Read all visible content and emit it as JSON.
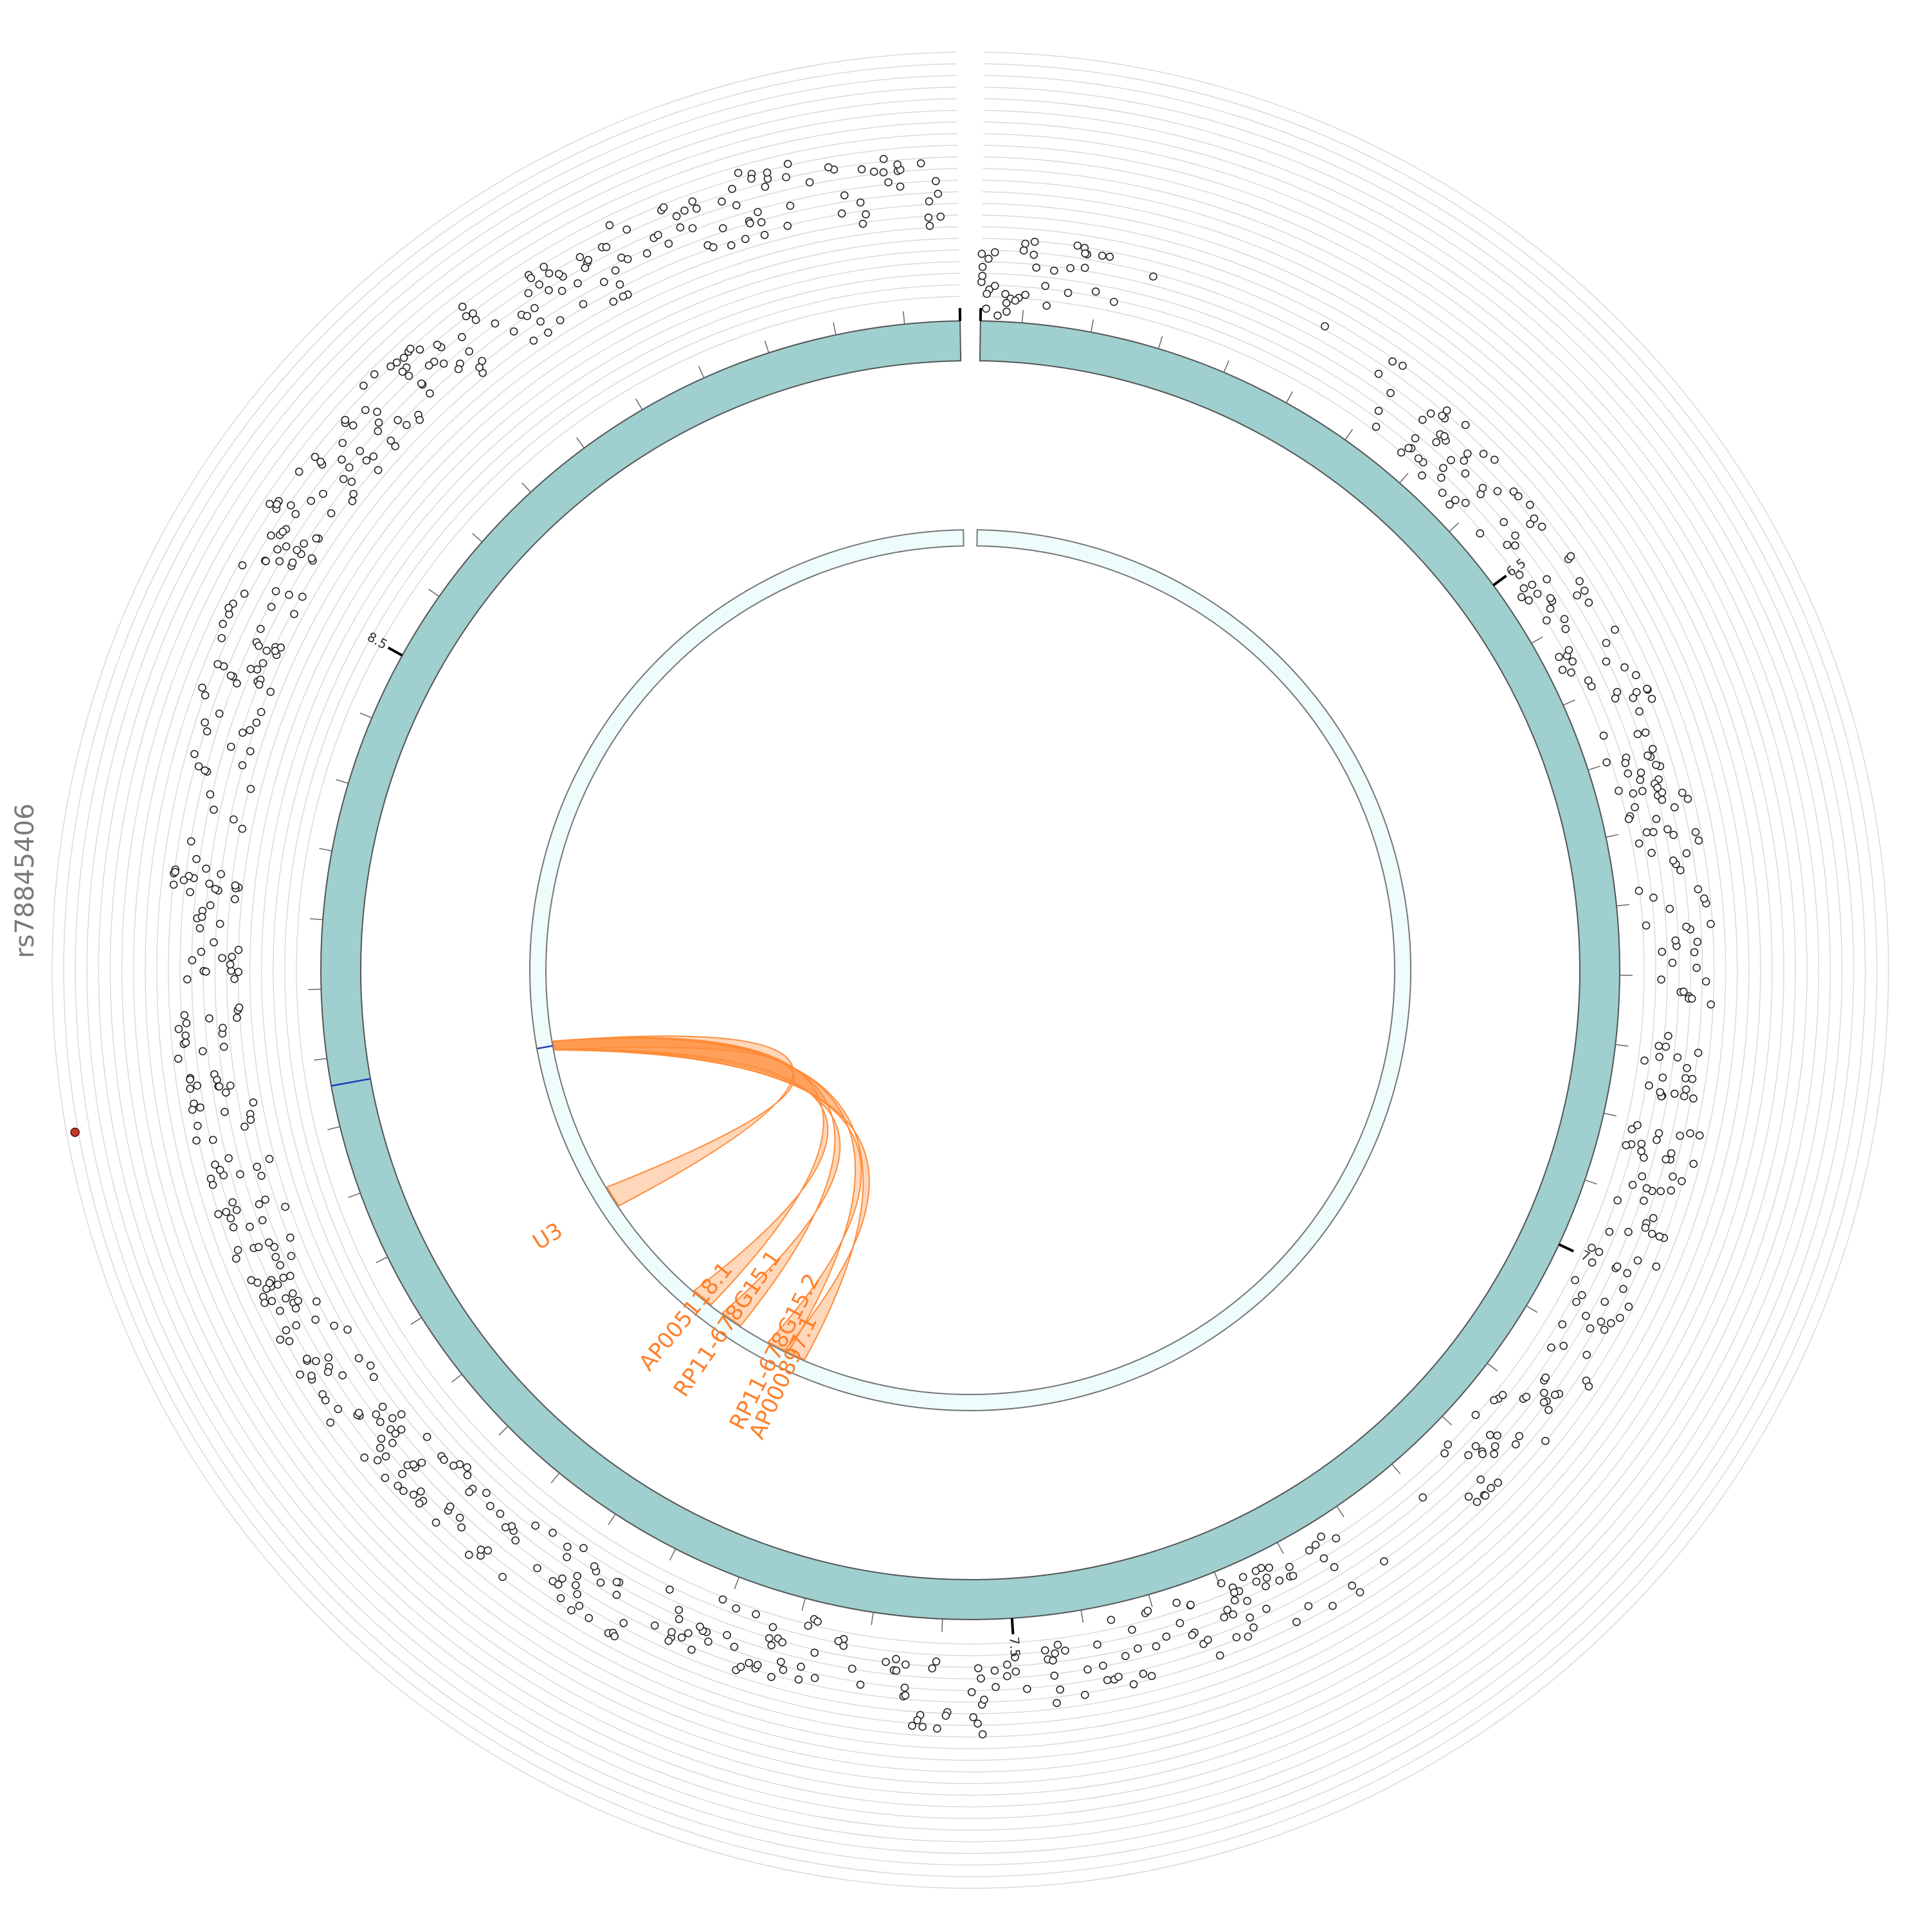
{
  "chart_data": {
    "type": "circos",
    "snp_label": "rs78845406",
    "scale_ticks": [
      "6.5",
      "7",
      "7.5",
      "8.5"
    ],
    "axis_units": "Mb",
    "region": {
      "start_mb": 6.07,
      "end_mb": 8.99
    },
    "tick_positions_mb": {
      "6.5": 6.5,
      "7": 7.0,
      "7.5": 7.5,
      "8.5": 8.5
    },
    "minor_tick_step_mb": 0.05,
    "highlighted_snp_mb": 8.18,
    "genes": [
      {
        "name": "U3",
        "position_mb": 8.0
      },
      {
        "name": "AP005118.1",
        "position_mb": 7.85
      },
      {
        "name": "RP11-678G15.1",
        "position_mb": 7.81
      },
      {
        "name": "RP11-678G15.2",
        "position_mb": 7.75
      },
      {
        "name": "AP000897.1",
        "position_mb": 7.73
      }
    ],
    "links": [
      {
        "from_mb": 8.18,
        "to": "U3"
      },
      {
        "from_mb": 8.18,
        "to": "AP005118.1"
      },
      {
        "from_mb": 8.18,
        "to": "RP11-678G15.1"
      },
      {
        "from_mb": 8.18,
        "to": "RP11-678G15.2"
      },
      {
        "from_mb": 8.18,
        "to": "AP000897.1"
      }
    ],
    "colors": {
      "ideogram": "#9fcfcf",
      "inner_track": "#eefcfc",
      "link": "#ff8c3a",
      "gene_label": "#ff7f2a",
      "snp_marker": "#c0392b",
      "snp_line": "#1f3fbf",
      "grid": "#d9d9d9"
    },
    "grid": true,
    "legend": "none"
  }
}
